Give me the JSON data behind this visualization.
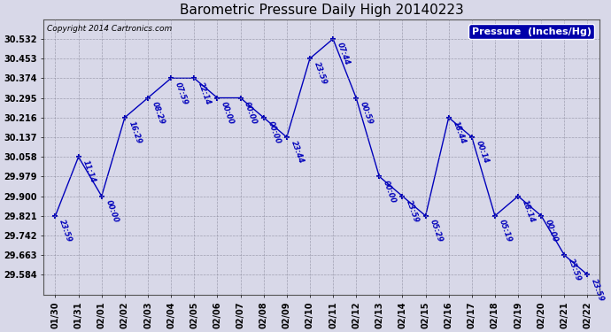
{
  "title": "Barometric Pressure Daily High 20140223",
  "copyright": "Copyright 2014 Cartronics.com",
  "legend_label": "Pressure  (Inches/Hg)",
  "dates": [
    "01/30",
    "01/31",
    "02/01",
    "02/02",
    "02/03",
    "02/04",
    "02/05",
    "02/06",
    "02/07",
    "02/08",
    "02/09",
    "02/10",
    "02/11",
    "02/12",
    "02/13",
    "02/14",
    "02/15",
    "02/16",
    "02/17",
    "02/18",
    "02/19",
    "02/20",
    "02/21",
    "02/22"
  ],
  "values": [
    29.821,
    30.058,
    29.9,
    30.216,
    30.295,
    30.374,
    30.374,
    30.295,
    30.295,
    30.216,
    30.137,
    30.453,
    30.532,
    30.295,
    29.979,
    29.9,
    29.821,
    30.216,
    30.137,
    29.821,
    29.9,
    29.821,
    29.663,
    29.584
  ],
  "time_labels": [
    "23:59",
    "11:14",
    "00:00",
    "16:29",
    "08:29",
    "07:59",
    "22:14",
    "00:00",
    "00:00",
    "00:00",
    "23:44",
    "23:59",
    "07:44",
    "00:59",
    "00:00",
    "23:59",
    "05:29",
    "18:44",
    "00:14",
    "05:19",
    "18:14",
    "00:00",
    "23:59",
    "23:59"
  ],
  "ylim": [
    29.505,
    30.611
  ],
  "yticks": [
    29.584,
    29.663,
    29.742,
    29.821,
    29.9,
    29.979,
    30.058,
    30.137,
    30.216,
    30.295,
    30.374,
    30.453,
    30.532
  ],
  "line_color": "#0000bb",
  "background_color": "#d8d8e8",
  "plot_bg_color": "#d8d8e8",
  "grid_color": "#888899",
  "title_fontsize": 11,
  "label_fontsize": 7,
  "tick_fontsize": 7,
  "annot_fontsize": 6,
  "legend_bg": "#0000aa",
  "legend_text_color": "#ffffff"
}
